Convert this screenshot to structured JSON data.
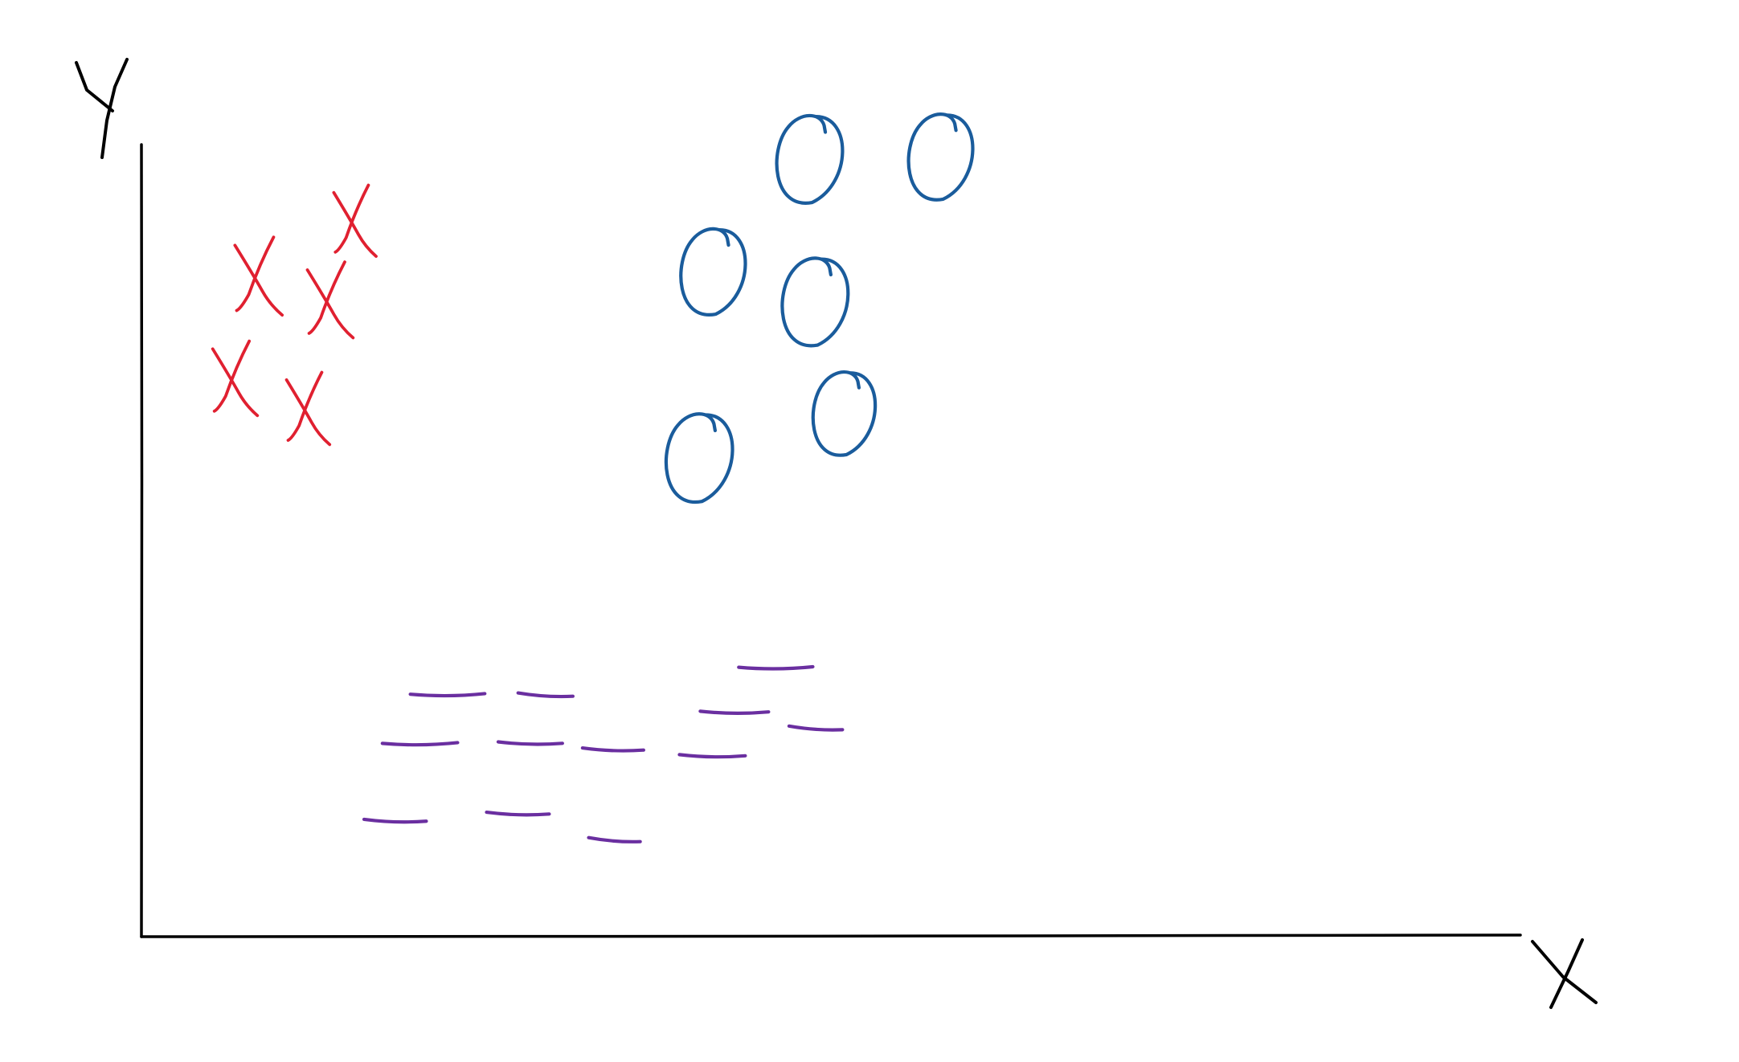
{
  "chart_data": {
    "type": "scatter",
    "title": "",
    "xlabel": "X",
    "ylabel": "Y",
    "xlim": [
      0,
      100
    ],
    "ylim": [
      0,
      100
    ],
    "grid": false,
    "legend": "none",
    "series": [
      {
        "marker": "x",
        "color": "#e02030",
        "points": [
          {
            "x": 15.4,
            "y": 90.3
          },
          {
            "x": 8.4,
            "y": 83.3
          },
          {
            "x": 13.6,
            "y": 80.3
          },
          {
            "x": 6.7,
            "y": 70.4
          },
          {
            "x": 12.0,
            "y": 66.6
          }
        ]
      },
      {
        "marker": "circle",
        "color": "#1a5c9c",
        "points": [
          {
            "x": 48.5,
            "y": 98.2
          },
          {
            "x": 58.0,
            "y": 98.5
          },
          {
            "x": 41.5,
            "y": 84.0
          },
          {
            "x": 48.9,
            "y": 80.2
          },
          {
            "x": 51.0,
            "y": 66.1
          },
          {
            "x": 40.5,
            "y": 60.5
          }
        ]
      },
      {
        "marker": "dash",
        "color": "#6a2fa0",
        "points": [
          {
            "x": 46.0,
            "y": 33.9
          },
          {
            "x": 22.2,
            "y": 30.5
          },
          {
            "x": 29.3,
            "y": 30.5
          },
          {
            "x": 43.0,
            "y": 28.3
          },
          {
            "x": 48.9,
            "y": 26.3
          },
          {
            "x": 20.2,
            "y": 24.3
          },
          {
            "x": 28.2,
            "y": 24.4
          },
          {
            "x": 34.2,
            "y": 23.6
          },
          {
            "x": 41.4,
            "y": 22.8
          },
          {
            "x": 18.4,
            "y": 14.6
          },
          {
            "x": 27.3,
            "y": 15.5
          },
          {
            "x": 34.3,
            "y": 12.2
          }
        ]
      }
    ]
  }
}
